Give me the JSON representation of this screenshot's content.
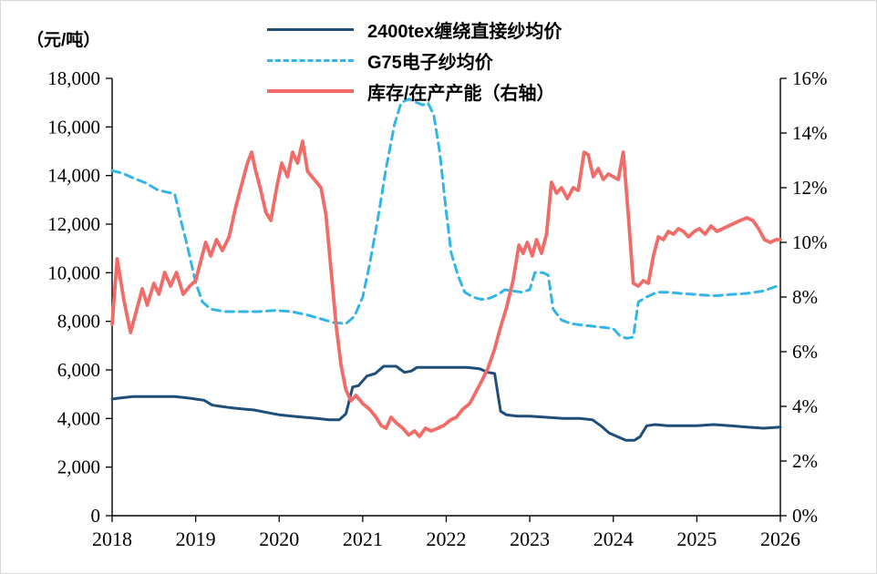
{
  "unit_label": "（元/吨）",
  "chart_data": {
    "type": "line",
    "title": "",
    "x_axis": {
      "min": 2018,
      "max": 2026,
      "ticks": [
        "2018",
        "2019",
        "2020",
        "2021",
        "2022",
        "2023",
        "2024",
        "2025",
        "2026"
      ]
    },
    "left_axis": {
      "unit": "（元/吨）",
      "min": 0,
      "max": 18000,
      "ticks": [
        "0",
        "2,000",
        "4,000",
        "6,000",
        "8,000",
        "10,000",
        "12,000",
        "14,000",
        "16,000",
        "18,000"
      ]
    },
    "right_axis": {
      "min": 0,
      "max": 16,
      "ticks": [
        "0%",
        "2%",
        "4%",
        "6%",
        "8%",
        "10%",
        "12%",
        "14%",
        "16%"
      ]
    },
    "axis_color": "#000000",
    "grid": false,
    "legend_position": "top-center",
    "series": [
      {
        "name": "2400tex缠绕直接纱均价",
        "axis": "left",
        "style": "solid",
        "color": "#1f4e79",
        "width": 3,
        "x": [
          2018.0,
          2018.1,
          2018.25,
          2018.5,
          2018.75,
          2018.9,
          2019.0,
          2019.1,
          2019.2,
          2019.3,
          2019.4,
          2019.55,
          2019.7,
          2019.85,
          2020.0,
          2020.15,
          2020.3,
          2020.45,
          2020.6,
          2020.72,
          2020.8,
          2020.88,
          2020.95,
          2021.05,
          2021.15,
          2021.25,
          2021.4,
          2021.5,
          2021.58,
          2021.65,
          2021.8,
          2022.0,
          2022.25,
          2022.4,
          2022.5,
          2022.58,
          2022.65,
          2022.72,
          2022.85,
          2023.0,
          2023.2,
          2023.4,
          2023.6,
          2023.75,
          2023.85,
          2023.95,
          2024.05,
          2024.15,
          2024.25,
          2024.32,
          2024.4,
          2024.5,
          2024.65,
          2024.8,
          2025.0,
          2025.2,
          2025.4,
          2025.6,
          2025.8,
          2026.0
        ],
        "y": [
          4800,
          4850,
          4900,
          4900,
          4900,
          4850,
          4800,
          4750,
          4550,
          4500,
          4450,
          4400,
          4350,
          4250,
          4150,
          4100,
          4050,
          4000,
          3950,
          3950,
          4200,
          5300,
          5350,
          5750,
          5850,
          6150,
          6150,
          5900,
          5950,
          6100,
          6100,
          6100,
          6100,
          6050,
          5900,
          5850,
          4300,
          4150,
          4100,
          4100,
          4050,
          4000,
          4000,
          3950,
          3700,
          3400,
          3250,
          3100,
          3100,
          3250,
          3700,
          3750,
          3700,
          3700,
          3700,
          3750,
          3700,
          3650,
          3600,
          3650
        ]
      },
      {
        "name": "G75电子纱均价",
        "axis": "left",
        "style": "dashed",
        "color": "#35b5e5",
        "width": 3,
        "x": [
          2018.0,
          2018.12,
          2018.25,
          2018.4,
          2018.55,
          2018.68,
          2018.75,
          2018.82,
          2018.9,
          2019.0,
          2019.08,
          2019.18,
          2019.35,
          2019.55,
          2019.75,
          2019.95,
          2020.15,
          2020.35,
          2020.5,
          2020.65,
          2020.8,
          2020.9,
          2021.0,
          2021.08,
          2021.18,
          2021.28,
          2021.38,
          2021.46,
          2021.55,
          2021.65,
          2021.72,
          2021.78,
          2021.85,
          2021.92,
          2022.0,
          2022.06,
          2022.14,
          2022.22,
          2022.32,
          2022.42,
          2022.52,
          2022.62,
          2022.7,
          2022.8,
          2022.9,
          2023.0,
          2023.06,
          2023.16,
          2023.22,
          2023.28,
          2023.38,
          2023.5,
          2023.62,
          2023.75,
          2023.88,
          2024.0,
          2024.08,
          2024.16,
          2024.24,
          2024.3,
          2024.4,
          2024.52,
          2024.65,
          2024.8,
          2025.0,
          2025.2,
          2025.4,
          2025.6,
          2025.8,
          2026.0
        ],
        "y": [
          14200,
          14100,
          13900,
          13700,
          13400,
          13300,
          13250,
          12200,
          11100,
          9600,
          8800,
          8500,
          8400,
          8400,
          8400,
          8450,
          8400,
          8250,
          8100,
          7950,
          7900,
          8200,
          9000,
          10300,
          12200,
          14300,
          16100,
          17000,
          17150,
          17000,
          16900,
          17000,
          16500,
          15000,
          12500,
          10800,
          9900,
          9200,
          9000,
          8900,
          8950,
          9100,
          9300,
          9250,
          9200,
          9300,
          10000,
          10000,
          9900,
          8500,
          8050,
          7900,
          7850,
          7800,
          7750,
          7700,
          7400,
          7300,
          7350,
          8800,
          9000,
          9200,
          9200,
          9150,
          9100,
          9050,
          9100,
          9150,
          9250,
          9500
        ]
      },
      {
        "name": "库存/在产产能（右轴）",
        "axis": "right",
        "style": "solid",
        "color": "#f16c68",
        "width": 3.8,
        "x": [
          2018.0,
          2018.06,
          2018.14,
          2018.22,
          2018.3,
          2018.36,
          2018.42,
          2018.5,
          2018.56,
          2018.63,
          2018.7,
          2018.77,
          2018.85,
          2018.93,
          2019.0,
          2019.06,
          2019.12,
          2019.18,
          2019.25,
          2019.32,
          2019.4,
          2019.48,
          2019.55,
          2019.62,
          2019.67,
          2019.72,
          2019.78,
          2019.84,
          2019.9,
          2019.97,
          2020.03,
          2020.1,
          2020.16,
          2020.22,
          2020.28,
          2020.34,
          2020.42,
          2020.5,
          2020.56,
          2020.62,
          2020.68,
          2020.74,
          2020.8,
          2020.86,
          2020.92,
          2021.0,
          2021.08,
          2021.16,
          2021.22,
          2021.28,
          2021.34,
          2021.4,
          2021.48,
          2021.55,
          2021.62,
          2021.68,
          2021.75,
          2021.82,
          2021.9,
          2021.97,
          2022.05,
          2022.12,
          2022.2,
          2022.28,
          2022.35,
          2022.42,
          2022.5,
          2022.58,
          2022.65,
          2022.72,
          2022.8,
          2022.87,
          2022.92,
          2022.97,
          2023.03,
          2023.08,
          2023.14,
          2023.2,
          2023.26,
          2023.32,
          2023.38,
          2023.45,
          2023.52,
          2023.58,
          2023.65,
          2023.7,
          2023.76,
          2023.82,
          2023.88,
          2023.94,
          2024.0,
          2024.06,
          2024.12,
          2024.18,
          2024.24,
          2024.3,
          2024.36,
          2024.42,
          2024.48,
          2024.54,
          2024.6,
          2024.66,
          2024.72,
          2024.78,
          2024.84,
          2024.9,
          2024.97,
          2025.03,
          2025.1,
          2025.17,
          2025.24,
          2025.31,
          2025.38,
          2025.45,
          2025.52,
          2025.6,
          2025.67,
          2025.74,
          2025.81,
          2025.88,
          2025.95,
          2026.0
        ],
        "y": [
          7.0,
          9.4,
          7.9,
          6.7,
          7.6,
          8.3,
          7.7,
          8.5,
          8.1,
          8.9,
          8.4,
          8.9,
          8.1,
          8.4,
          8.6,
          9.3,
          10.0,
          9.5,
          10.1,
          9.7,
          10.2,
          11.3,
          12.1,
          12.9,
          13.3,
          12.6,
          11.9,
          11.1,
          10.8,
          12.0,
          12.9,
          12.4,
          13.3,
          12.9,
          13.7,
          12.6,
          12.3,
          12.0,
          11.0,
          9.0,
          7.0,
          5.5,
          4.6,
          4.2,
          4.4,
          4.1,
          3.9,
          3.6,
          3.3,
          3.2,
          3.6,
          3.4,
          3.2,
          2.95,
          3.1,
          2.9,
          3.2,
          3.1,
          3.2,
          3.3,
          3.5,
          3.6,
          3.9,
          4.1,
          4.5,
          4.9,
          5.4,
          6.1,
          6.9,
          7.6,
          8.6,
          9.9,
          9.6,
          10.0,
          9.5,
          10.1,
          9.6,
          10.3,
          12.2,
          11.8,
          12.0,
          11.6,
          12.0,
          11.9,
          13.3,
          13.2,
          12.4,
          12.7,
          12.3,
          12.5,
          12.4,
          12.3,
          13.3,
          11.0,
          8.5,
          8.4,
          8.6,
          8.5,
          9.5,
          10.2,
          10.1,
          10.4,
          10.3,
          10.5,
          10.4,
          10.2,
          10.4,
          10.5,
          10.3,
          10.6,
          10.4,
          10.5,
          10.6,
          10.7,
          10.8,
          10.9,
          10.8,
          10.5,
          10.1,
          10.0,
          10.1,
          10.1
        ]
      }
    ]
  },
  "legend": {
    "items": [
      {
        "label": "2400tex缠绕直接纱均价"
      },
      {
        "label": "G75电子纱均价"
      },
      {
        "label": "库存/在产产能（右轴）"
      }
    ]
  }
}
